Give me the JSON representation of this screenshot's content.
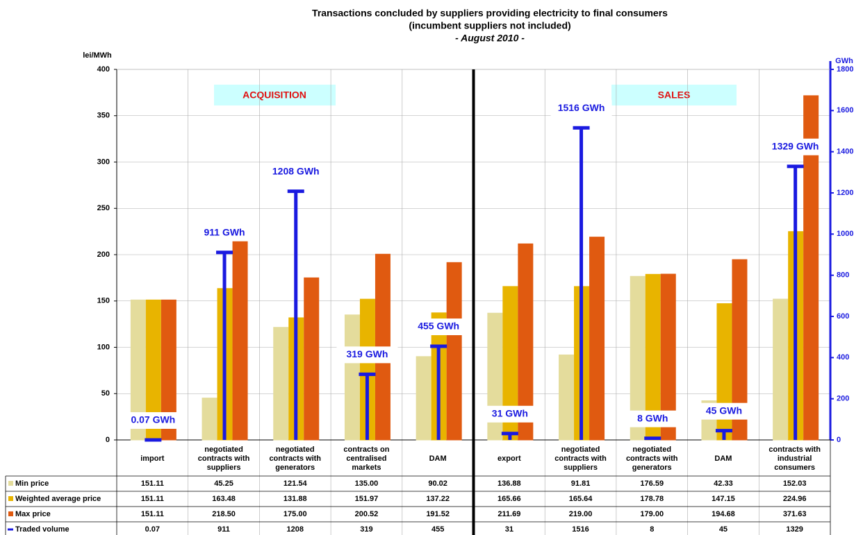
{
  "chart_data": {
    "type": "bar",
    "title": "Transactions concluded by suppliers providing electricity to final consumers",
    "subtitle": "(incumbent suppliers not included)",
    "period": "- August 2010 -",
    "y_label": "lei/MWh",
    "y2_label": "GWh",
    "annotations": [
      "ACQUISITION",
      "SALES"
    ],
    "categories": [
      "import",
      "negotiated contracts with suppliers",
      "negotiated contracts with generators",
      "contracts on centralised markets",
      "DAM",
      "export",
      "negotiated contracts with suppliers",
      "negotiated contracts with generators",
      "DAM",
      "contracts with industrial consumers"
    ],
    "series": [
      {
        "name": "Min price",
        "color": "#e4dc9c",
        "values": [
          151.11,
          45.25,
          121.54,
          135.0,
          90.02,
          136.88,
          91.81,
          176.59,
          42.33,
          152.03
        ],
        "value_labels": [
          "151.11",
          "45.25",
          "121.54",
          "135.00",
          "90.02",
          "136.88",
          "91.81",
          "176.59",
          "42.33",
          "152.03"
        ]
      },
      {
        "name": "Weighted average price",
        "color": "#e8b400",
        "values": [
          151.11,
          163.48,
          131.88,
          151.97,
          137.22,
          165.66,
          165.64,
          178.78,
          147.15,
          224.96
        ],
        "value_labels": [
          "151.11",
          "163.48",
          "131.88",
          "151.97",
          "137.22",
          "165.66",
          "165.64",
          "178.78",
          "147.15",
          "224.96"
        ]
      },
      {
        "name": "Max price",
        "color": "#e05a10",
        "values": [
          151.11,
          218.5,
          175.0,
          200.52,
          191.52,
          211.69,
          219.0,
          179.0,
          194.68,
          371.63
        ],
        "value_labels": [
          "151.11",
          "218.50",
          "175.00",
          "200.52",
          "191.52",
          "211.69",
          "219.00",
          "179.00",
          "194.68",
          "371.63"
        ]
      },
      {
        "name": "Traded volume",
        "color": "#1a1ae0",
        "axis": "y2",
        "values": [
          0.07,
          911,
          1208,
          319,
          455,
          31,
          1516,
          8,
          45,
          1329
        ],
        "value_labels": [
          "0.07 GWh",
          "911 GWh",
          "1208 GWh",
          "319 GWh",
          "455 GWh",
          "31 GWh",
          "1516 GWh",
          "8 GWh",
          "45 GWh",
          "1329 GWh"
        ]
      }
    ],
    "ylim": [
      0,
      400
    ],
    "yticks": [
      0,
      50,
      100,
      150,
      200,
      250,
      300,
      350,
      400
    ],
    "y2lim": [
      0,
      1800
    ],
    "y2ticks": [
      0,
      200,
      400,
      600,
      800,
      1000,
      1200,
      1400,
      1600,
      1800
    ],
    "grid": true
  }
}
